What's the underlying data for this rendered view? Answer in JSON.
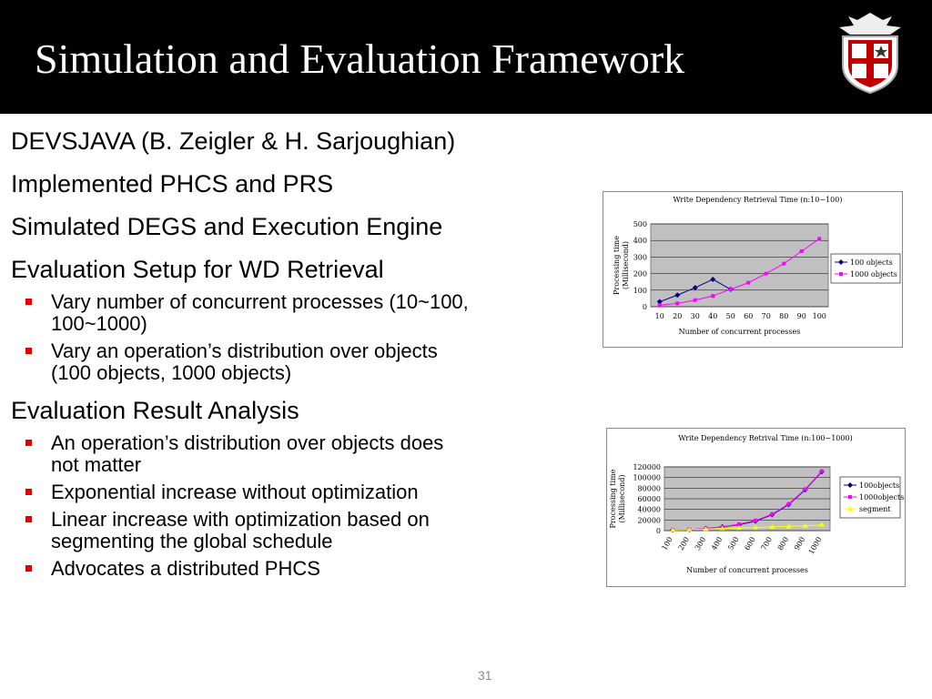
{
  "title": "Simulation and Evaluation Framework",
  "bullets": [
    {
      "level": 1,
      "text": "DEVSJAVA (B. Zeigler & H. Sarjoughian)"
    },
    {
      "level": 1,
      "text": "Implemented PHCS and PRS"
    },
    {
      "level": 1,
      "text": "Simulated DEGS and Execution Engine"
    },
    {
      "level": 1,
      "text": "Evaluation Setup for WD Retrieval"
    },
    {
      "level": 2,
      "text": [
        "Vary number of concurrent processes (10~100,",
        "100~1000)"
      ]
    },
    {
      "level": 2,
      "text": [
        "Vary an operation’s distribution over objects",
        "(100 objects, 1000 objects)"
      ]
    },
    {
      "level": 1,
      "text": "Evaluation Result Analysis"
    },
    {
      "level": 2,
      "text": [
        "An operation’s distribution over objects does",
        "not matter"
      ]
    },
    {
      "level": 2,
      "text": [
        "Exponential increase without optimization"
      ]
    },
    {
      "level": 2,
      "text": [
        "Linear increase with optimization based on",
        "segmenting the global schedule"
      ]
    },
    {
      "level": 2,
      "text": [
        "Advocates a distributed PHCS"
      ]
    }
  ],
  "page_number": "31",
  "chart_data": [
    {
      "type": "line",
      "title": "Write Dependency Retrieval Time (n:10~100)",
      "xlabel": "Number of concurrent processes",
      "ylabel": [
        "Processing time",
        "(Millisecond)"
      ],
      "categories": [
        "10",
        "20",
        "30",
        "40",
        "50",
        "60",
        "70",
        "80",
        "90",
        "100"
      ],
      "series": [
        {
          "name": "100 objects",
          "color": "#000080",
          "marker": "diamond",
          "values": [
            30,
            70,
            115,
            165,
            105,
            null,
            null,
            null,
            null,
            null
          ]
        },
        {
          "name": "1000 objects",
          "color": "#ff00ff",
          "marker": "square",
          "values": [
            10,
            20,
            40,
            65,
            105,
            145,
            200,
            260,
            335,
            410
          ]
        }
      ],
      "ylim": [
        0,
        500
      ],
      "yticks": [
        0,
        100,
        200,
        300,
        400,
        500
      ],
      "grid": true,
      "legend": "right",
      "rotate_xticks": false
    },
    {
      "type": "line",
      "title": "Write Dependency Retrival Time (n:100~1000)",
      "xlabel": "Number of concurrent processes",
      "ylabel": [
        "Processing time",
        "(Millisecond)"
      ],
      "categories": [
        "100",
        "200",
        "300",
        "400",
        "500",
        "600",
        "700",
        "800",
        "900",
        "1000"
      ],
      "series": [
        {
          "name": "100objects",
          "color": "#000080",
          "marker": "diamond",
          "values": [
            1000,
            2000,
            4000,
            7000,
            11000,
            18000,
            30000,
            49000,
            77000,
            111000
          ]
        },
        {
          "name": "1000objects",
          "color": "#ff00ff",
          "marker": "square",
          "values": [
            1000,
            2000,
            4000,
            7000,
            12000,
            19000,
            31000,
            50000,
            78000,
            112000
          ]
        },
        {
          "name": "segment",
          "color": "#ffff00",
          "marker": "triangle",
          "values": [
            1000,
            2000,
            3000,
            4000,
            5000,
            6000,
            7000,
            8000,
            9000,
            11000
          ]
        }
      ],
      "ylim": [
        0,
        120000
      ],
      "yticks": [
        0,
        20000,
        40000,
        60000,
        80000,
        100000,
        120000
      ],
      "grid": true,
      "legend": "right",
      "rotate_xticks": true
    }
  ]
}
